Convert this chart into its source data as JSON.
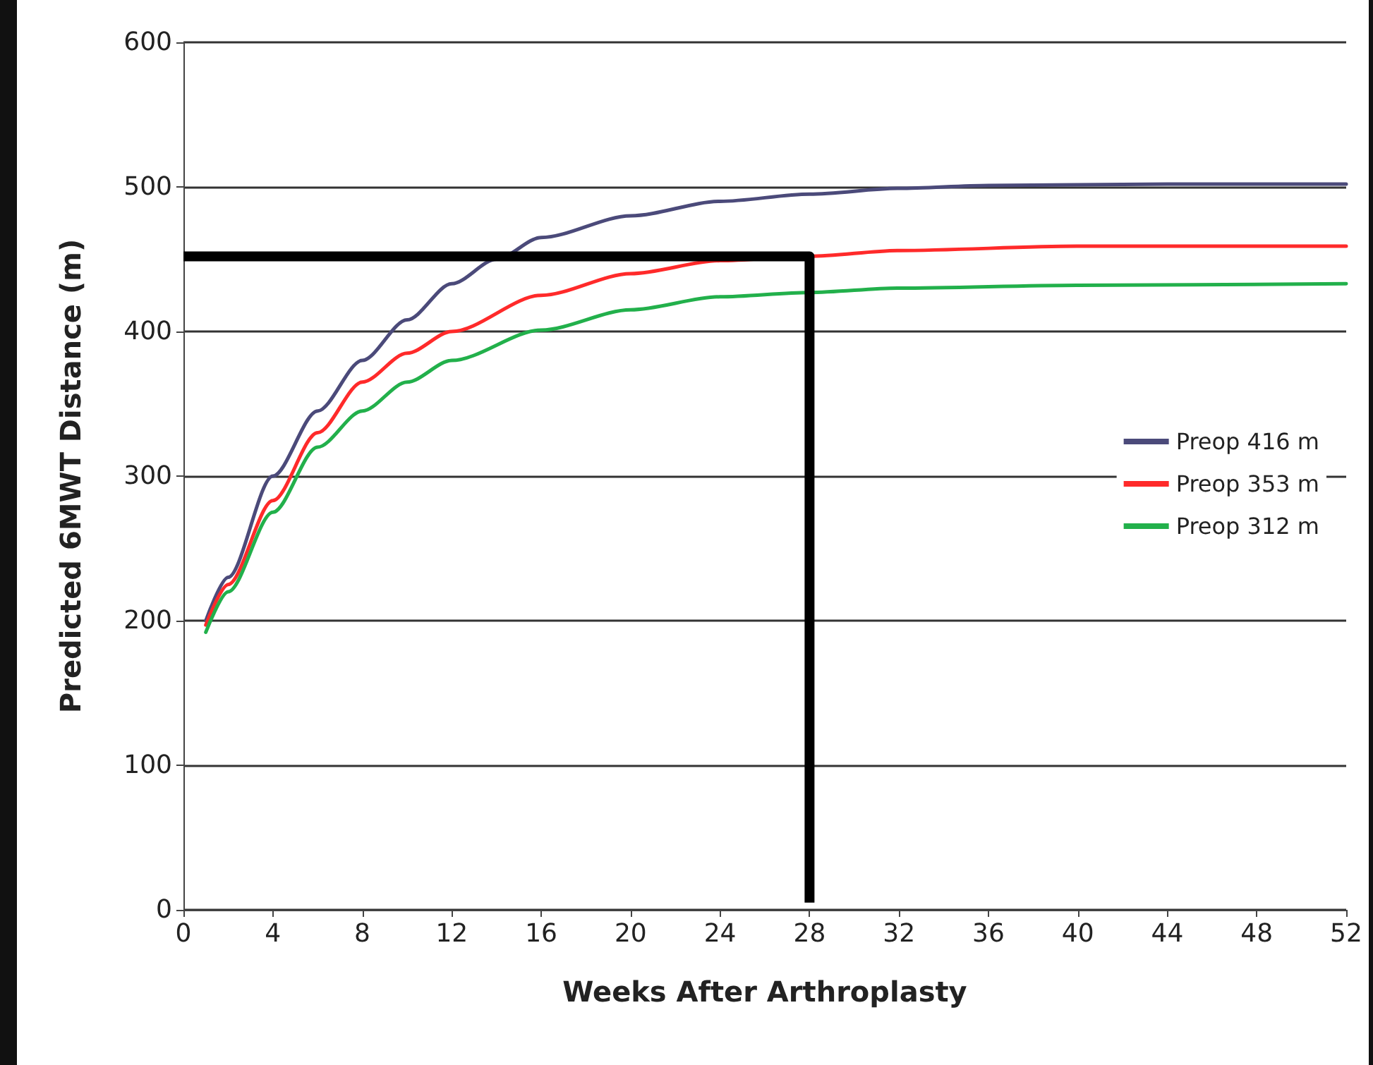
{
  "chart_data": {
    "type": "line",
    "xlabel": "Weeks After Arthroplasty",
    "ylabel": "Predicted 6MWT Distance (m)",
    "xlim": [
      0,
      52
    ],
    "xticks": [
      0,
      4,
      8,
      12,
      16,
      20,
      24,
      28,
      32,
      36,
      40,
      44,
      48,
      52
    ],
    "ylim": [
      0,
      600
    ],
    "yticks": [
      0,
      100,
      200,
      300,
      400,
      500,
      600
    ],
    "grid": "y",
    "legend": "right",
    "marker": "none",
    "line_style": "solid",
    "series": [
      {
        "name": "Preop 416 m",
        "color": "#4b4a7a",
        "x": [
          1,
          2,
          4,
          6,
          8,
          10,
          12,
          14,
          16,
          20,
          24,
          28,
          32,
          36,
          44,
          52
        ],
        "values": [
          200,
          230,
          300,
          345,
          380,
          408,
          433,
          450,
          465,
          480,
          490,
          495,
          499,
          501,
          502,
          502
        ]
      },
      {
        "name": "Preop 353 m",
        "color": "#ff2a2a",
        "x": [
          1,
          2,
          4,
          6,
          8,
          10,
          12,
          16,
          20,
          24,
          28,
          32,
          40,
          52
        ],
        "values": [
          197,
          225,
          283,
          330,
          365,
          385,
          400,
          425,
          440,
          449,
          452,
          456,
          459,
          459
        ]
      },
      {
        "name": "Preop 312 m",
        "color": "#22b04b",
        "x": [
          1,
          2,
          4,
          6,
          8,
          10,
          12,
          16,
          20,
          24,
          28,
          32,
          40,
          52
        ],
        "values": [
          192,
          220,
          275,
          320,
          345,
          365,
          380,
          401,
          415,
          424,
          427,
          430,
          432,
          433
        ]
      },
      {
        "color": "#000000",
        "x": [
          0,
          28,
          28
        ],
        "values": [
          452,
          452,
          5
        ]
      }
    ]
  }
}
